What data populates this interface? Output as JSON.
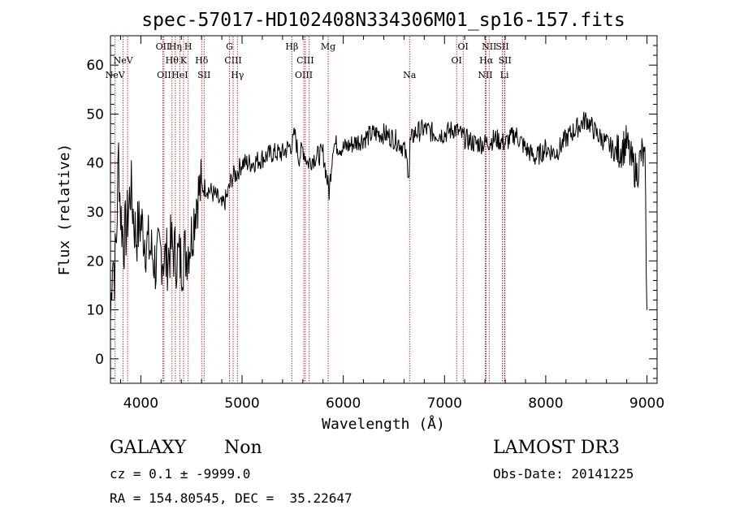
{
  "chart_data": {
    "type": "line",
    "title": "spec-57017-HD102408N334306M01_sp16-157.fits",
    "xlabel": "Wavelength (Å)",
    "ylabel": "Flux (relative)",
    "xlim": [
      3700,
      9100
    ],
    "ylim": [
      -5,
      66
    ],
    "xticks": [
      4000,
      5000,
      6000,
      7000,
      8000,
      9000
    ],
    "yticks": [
      0,
      10,
      20,
      30,
      40,
      50,
      60
    ],
    "grid": false,
    "line_color": "#000000",
    "marker_color": "#b22222",
    "series": [
      {
        "x": [
          3700,
          3720,
          3740,
          3760,
          3780,
          3800,
          3830,
          3860,
          3900,
          3950,
          4000,
          4050,
          4100,
          4150,
          4200,
          4250,
          4300,
          4350,
          4400,
          4450,
          4500,
          4550,
          4600,
          4650,
          4700,
          4750,
          4800,
          4850,
          4900,
          4950,
          5000,
          5100,
          5200,
          5300,
          5400,
          5500,
          5520,
          5560,
          5600,
          5650,
          5700,
          5800,
          5860,
          5900,
          6000,
          6100,
          6200,
          6300,
          6400,
          6500,
          6560,
          6600,
          6650,
          6660,
          6700,
          6800,
          6900,
          7000,
          7100,
          7200,
          7300,
          7400,
          7500,
          7600,
          7700,
          7800,
          7900,
          8000,
          8100,
          8200,
          8300,
          8400,
          8500,
          8600,
          8700,
          8800,
          8850,
          8900,
          8950,
          8980,
          9000
        ],
        "y": [
          8,
          22,
          18,
          25,
          42,
          30,
          24,
          27,
          35,
          25,
          28,
          24,
          22,
          19,
          22,
          20,
          23,
          21,
          20,
          22,
          25,
          33,
          35,
          35,
          34,
          33,
          31,
          33,
          37,
          38,
          40,
          40,
          41,
          42,
          42,
          44,
          46,
          41,
          43,
          40,
          41,
          42,
          34,
          44,
          43,
          44,
          45,
          46,
          46,
          45,
          44,
          43,
          38,
          44,
          46,
          47,
          46,
          46,
          47,
          45,
          44,
          44,
          45,
          44,
          46,
          43,
          41,
          43,
          42,
          45,
          47,
          49,
          46,
          44,
          42,
          44,
          40,
          38,
          42,
          40,
          10
        ]
      }
    ],
    "line_markers": [
      {
        "x": 3746,
        "label": "NeV",
        "row": 4
      },
      {
        "x": 3826,
        "label": "NeV",
        "row": 3
      },
      {
        "x": 3869,
        "label": "",
        "row": 0
      },
      {
        "x": 4217,
        "label": "OII",
        "row": 1
      },
      {
        "x": 4229,
        "label": "OII",
        "row": 4
      },
      {
        "x": 4308,
        "label": "Hθ",
        "row": 3
      },
      {
        "x": 4341,
        "label": "Hη",
        "row": 1
      },
      {
        "x": 4385,
        "label": "HeI",
        "row": 4
      },
      {
        "x": 4422,
        "label": "K",
        "row": 3
      },
      {
        "x": 4468,
        "label": "H",
        "row": 1
      },
      {
        "x": 4601,
        "label": "Hδ",
        "row": 3
      },
      {
        "x": 4625,
        "label": "SII",
        "row": 4
      },
      {
        "x": 4876,
        "label": "G",
        "row": 1
      },
      {
        "x": 4912,
        "label": "CIII",
        "row": 3
      },
      {
        "x": 4954,
        "label": "Hγ",
        "row": 4
      },
      {
        "x": 5492,
        "label": "Hβ",
        "row": 1
      },
      {
        "x": 5625,
        "label": "CIII",
        "row": 3
      },
      {
        "x": 5610,
        "label": "OIII",
        "row": 4
      },
      {
        "x": 5663,
        "label": "",
        "row": 0
      },
      {
        "x": 5851,
        "label": "Mg",
        "row": 1
      },
      {
        "x": 6655,
        "label": "Na",
        "row": 4
      },
      {
        "x": 7120,
        "label": "OI",
        "row": 3
      },
      {
        "x": 7184,
        "label": "OI",
        "row": 1
      },
      {
        "x": 7403,
        "label": "NII",
        "row": 4
      },
      {
        "x": 7412,
        "label": "Hα",
        "row": 3
      },
      {
        "x": 7441,
        "label": "NII",
        "row": 1
      },
      {
        "x": 7571,
        "label": "SII",
        "row": 1
      },
      {
        "x": 7597,
        "label": "SII",
        "row": 3
      },
      {
        "x": 7592,
        "label": "Li",
        "row": 4
      }
    ]
  },
  "footer": {
    "object_class": "GALAXY",
    "subclass": "Non",
    "survey": "LAMOST DR3",
    "cz_line": "cz = 0.1 ± -9999.0",
    "obs_date": "Obs-Date: 20141225",
    "radec_line": "RA = 154.80545, DEC =  35.22647"
  }
}
